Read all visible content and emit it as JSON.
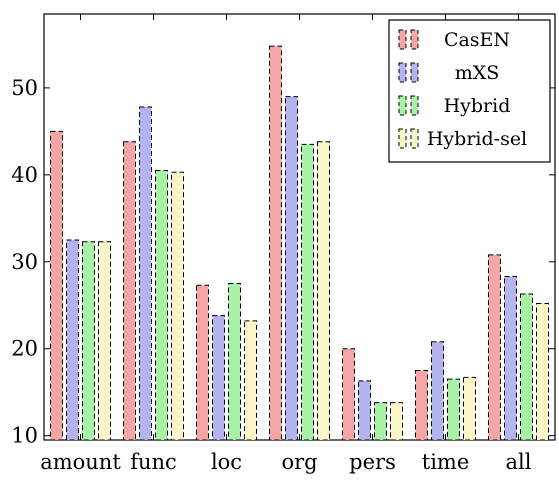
{
  "chart_data": {
    "type": "bar",
    "categories": [
      "amount",
      "func",
      "loc",
      "org",
      "pers",
      "time",
      "all"
    ],
    "series": [
      {
        "name": "CasEN",
        "values": [
          45.0,
          43.8,
          27.3,
          54.8,
          20.0,
          17.5,
          30.8
        ],
        "color": "#f4a6a6"
      },
      {
        "name": "mXS",
        "values": [
          32.5,
          47.8,
          23.8,
          49.0,
          16.3,
          20.8,
          28.3
        ],
        "color": "#b3b3ee"
      },
      {
        "name": "Hybrid",
        "values": [
          32.3,
          40.5,
          27.5,
          43.5,
          13.8,
          16.5,
          26.3
        ],
        "color": "#a8f2a8"
      },
      {
        "name": "Hybrid-sel",
        "values": [
          32.3,
          40.3,
          23.2,
          43.8,
          13.8,
          16.7,
          25.2
        ],
        "color": "#fbf6c8"
      }
    ],
    "yticks": [
      10,
      20,
      30,
      40,
      50
    ],
    "ylim": [
      9.5,
      58.5
    ],
    "legend_position": "top-right",
    "grid": false
  }
}
